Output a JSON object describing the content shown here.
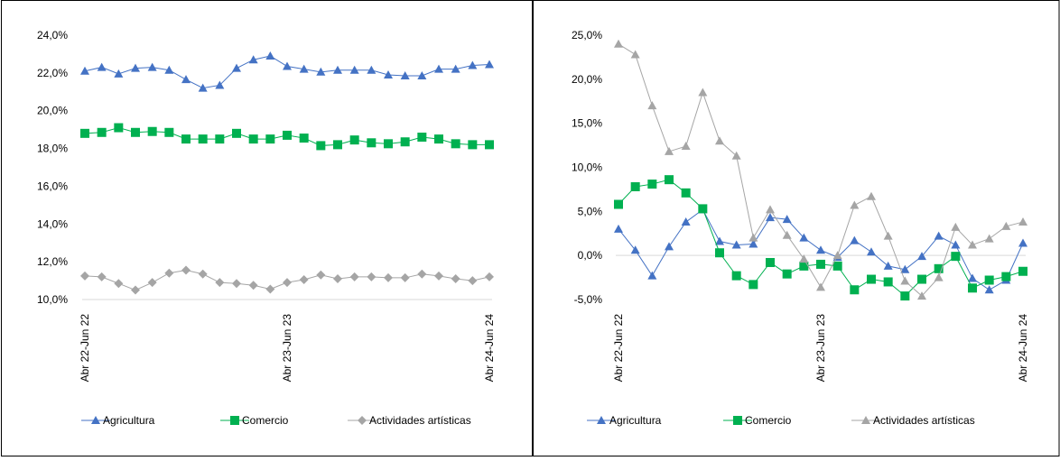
{
  "colors": {
    "agricultura": "#4472C4",
    "comercio": "#00B050",
    "artisticas": "#A5A5A5",
    "axis": "#D9D9D9",
    "border": "#000000"
  },
  "chart_data": [
    {
      "type": "line",
      "x_tick_labels": [
        "Abr 22-Jun 22",
        "Abr 23-Jun 23",
        "Abr 24-Jun 24"
      ],
      "y_tick_labels": [
        "24,0%",
        "22,0%",
        "20,0%",
        "18,0%",
        "16,0%",
        "14,0%",
        "12,0%",
        "10,0%"
      ],
      "ylim": [
        10,
        24
      ],
      "grid": false,
      "legend_position": "bottom",
      "series": [
        {
          "name": "Agricultura",
          "marker": "triangle",
          "color": "#4472C4",
          "values": [
            22.1,
            22.3,
            21.95,
            22.25,
            22.3,
            22.15,
            21.65,
            21.2,
            21.35,
            22.25,
            22.7,
            22.9,
            22.35,
            22.2,
            22.05,
            22.15,
            22.15,
            22.15,
            21.9,
            21.85,
            21.85,
            22.2,
            22.2,
            22.4,
            22.45
          ]
        },
        {
          "name": "Comercio",
          "marker": "square",
          "color": "#00B050",
          "values": [
            18.8,
            18.85,
            19.1,
            18.85,
            18.9,
            18.85,
            18.5,
            18.5,
            18.5,
            18.8,
            18.5,
            18.5,
            18.7,
            18.55,
            18.15,
            18.2,
            18.45,
            18.3,
            18.25,
            18.35,
            18.6,
            18.5,
            18.25,
            18.2,
            18.2
          ]
        },
        {
          "name": "Actividades artísticas",
          "marker": "diamond",
          "color": "#A5A5A5",
          "values": [
            11.25,
            11.2,
            10.85,
            10.5,
            10.9,
            11.4,
            11.55,
            11.35,
            10.9,
            10.85,
            10.75,
            10.55,
            10.9,
            11.05,
            11.3,
            11.1,
            11.2,
            11.2,
            11.15,
            11.15,
            11.35,
            11.25,
            11.1,
            11.0,
            11.2
          ]
        }
      ]
    },
    {
      "type": "line",
      "x_tick_labels": [
        "Abr 22-Jun 22",
        "Abr 23-Jun 23",
        "Abr 24-Jun 24"
      ],
      "y_tick_labels": [
        "25,0%",
        "20,0%",
        "15,0%",
        "10,0%",
        "5,0%",
        "0,0%",
        "-5,0%"
      ],
      "ylim": [
        -5,
        25
      ],
      "grid": false,
      "legend_position": "bottom",
      "series": [
        {
          "name": "Agricultura",
          "marker": "triangle",
          "color": "#4472C4",
          "values": [
            3.0,
            0.6,
            -2.3,
            1.0,
            3.8,
            5.2,
            1.6,
            1.2,
            1.3,
            4.3,
            4.1,
            2.0,
            0.6,
            -0.2,
            1.7,
            0.4,
            -1.2,
            -1.6,
            -0.1,
            2.2,
            1.2,
            -2.6,
            -3.9,
            -2.8,
            1.4
          ]
        },
        {
          "name": "Comercio",
          "marker": "square",
          "color": "#00B050",
          "values": [
            5.8,
            7.8,
            8.1,
            8.6,
            7.1,
            5.3,
            0.3,
            -2.3,
            -3.3,
            -0.8,
            -2.1,
            -1.2,
            -1.0,
            -1.2,
            -3.9,
            -2.7,
            -3.0,
            -4.6,
            -2.7,
            -1.5,
            -0.1,
            -3.7,
            -2.8,
            -2.4,
            -1.8
          ]
        },
        {
          "name": "Actividades artísticas",
          "marker": "triangle",
          "color": "#A5A5A5",
          "values": [
            24.0,
            22.8,
            17.0,
            11.8,
            12.4,
            18.5,
            13.0,
            11.3,
            2.0,
            5.2,
            2.3,
            -0.4,
            -3.6,
            0.0,
            5.7,
            6.7,
            2.2,
            -2.9,
            -4.6,
            -2.5,
            3.2,
            1.2,
            1.9,
            3.3,
            3.8
          ]
        }
      ]
    }
  ]
}
